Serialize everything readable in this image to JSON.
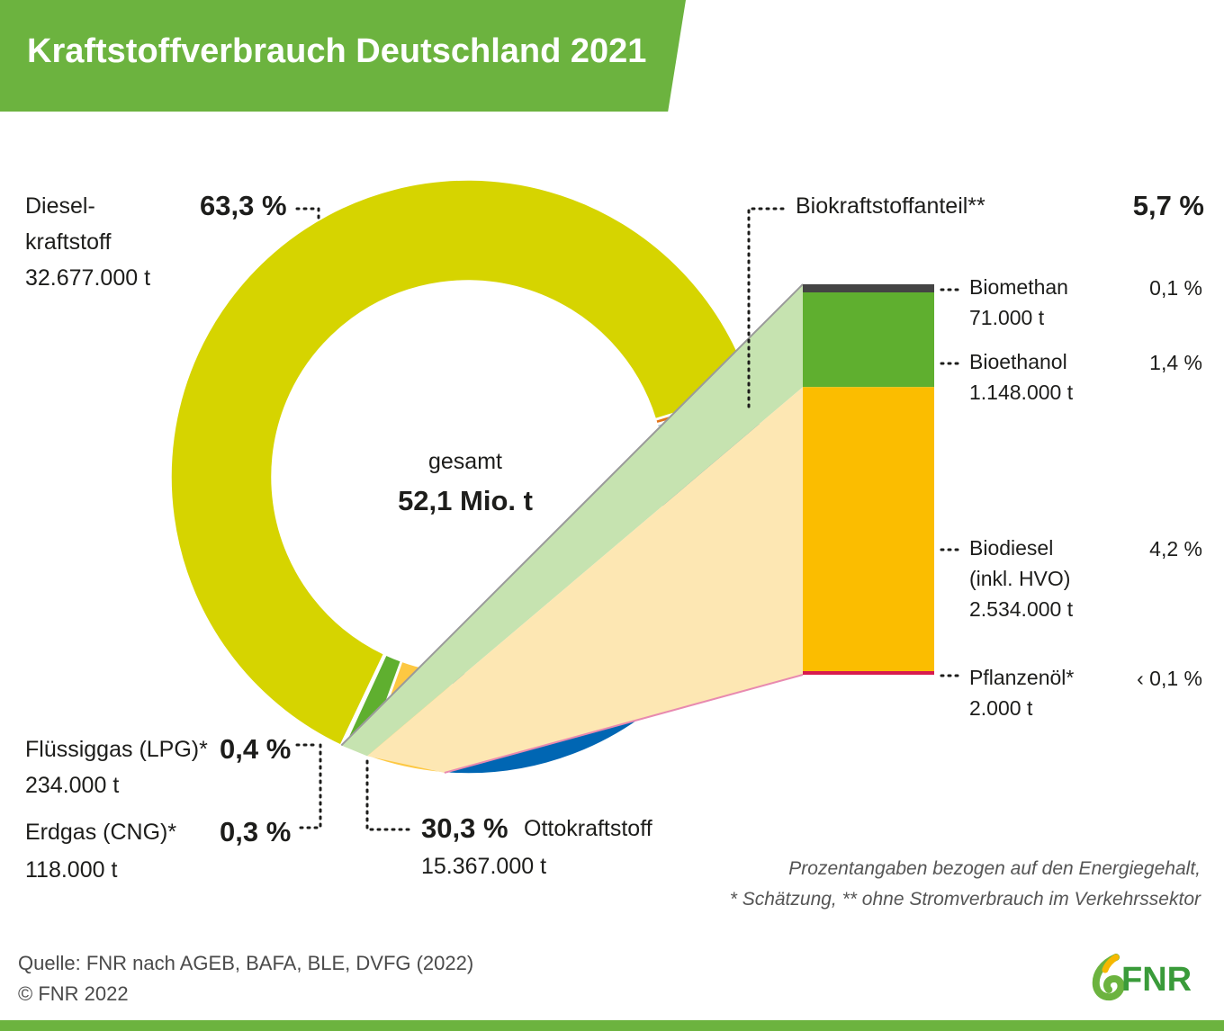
{
  "title": "Kraftstoffverbrauch Deutschland 2021",
  "center": {
    "label": "gesamt",
    "value": "52,1 Mio. t"
  },
  "labels": {
    "diesel": {
      "name_line1": "Diesel-",
      "name_line2": "kraftstoff",
      "amount": "32.677.000 t",
      "pct": "63,3 %"
    },
    "lpg": {
      "name": "Flüssiggas (LPG)*",
      "amount": "234.000 t",
      "pct": "0,4 %"
    },
    "cng": {
      "name": "Erdgas (CNG)*",
      "amount": "118.000 t",
      "pct": "0,3 %"
    },
    "otto": {
      "name": "Ottokraftstoff",
      "amount": "15.367.000 t",
      "pct": "30,3 %"
    },
    "bio_total": {
      "name": "Biokraftstoffanteil**",
      "pct": "5,7 %"
    },
    "biomethan": {
      "name": "Biomethan",
      "amount": "71.000 t",
      "pct": "0,1 %"
    },
    "bioethanol": {
      "name": "Bioethanol",
      "amount": "1.148.000 t",
      "pct": "1,4 %"
    },
    "biodiesel": {
      "name_line1": "Biodiesel",
      "name_line2": "(inkl. HVO)",
      "amount": "2.534.000 t",
      "pct": "4,2 %"
    },
    "pflanzenoel": {
      "name": "Pflanzenöl*",
      "amount": "2.000 t",
      "pct": "‹ 0,1 %"
    }
  },
  "notes": {
    "line1": "Prozentangaben bezogen auf den Energiegehalt,",
    "line2": "* Schätzung, ** ohne Stromverbrauch im Verkehrssektor"
  },
  "source": {
    "line1": "Quelle: FNR nach AGEB, BAFA, BLE, DVFG (2022)",
    "line2": "© FNR 2022"
  },
  "logo_text": "FNR",
  "colors": {
    "banner": "#6cb33f",
    "diesel": "#d6d400",
    "otto": "#0066b3",
    "lpg": "#e2741a",
    "cng": "#a9c9d6",
    "biomethan": "#444444",
    "bioethanol": "#5faf2f",
    "biodiesel": "#fbbd00",
    "biodiesel_donut": "#fdc842",
    "pflanzenoel": "#d81b4e"
  },
  "chart_data": {
    "type": "pie",
    "variant": "donut with bar-of-pie breakdown",
    "units": "% of energy content",
    "total": "52,1 Mio. t",
    "slices": [
      {
        "name": "Dieselkraftstoff",
        "value": 63.3,
        "tonnes": 32677000,
        "color": "#d6d400"
      },
      {
        "name": "Biomethan",
        "value": 0.1,
        "tonnes": 71000,
        "color": "#444444"
      },
      {
        "name": "Bioethanol",
        "value": 1.4,
        "tonnes": 1148000,
        "color": "#5faf2f"
      },
      {
        "name": "Biodiesel (inkl. HVO)",
        "value": 4.2,
        "tonnes": 2534000,
        "color": "#fdc842"
      },
      {
        "name": "Pflanzenöl",
        "value": 0.05,
        "tonnes": 2000,
        "color": "#d81b4e"
      },
      {
        "name": "Ottokraftstoff",
        "value": 30.3,
        "tonnes": 15367000,
        "color": "#0066b3"
      },
      {
        "name": "Erdgas (CNG)",
        "value": 0.3,
        "tonnes": 118000,
        "color": "#a9c9d6"
      },
      {
        "name": "Flüssiggas (LPG)",
        "value": 0.4,
        "tonnes": 234000,
        "color": "#e2741a"
      }
    ],
    "breakdown": {
      "name": "Biokraftstoffanteil",
      "total": 5.7,
      "items": [
        {
          "name": "Biomethan",
          "value": 0.1,
          "tonnes": 71000,
          "color": "#444444"
        },
        {
          "name": "Bioethanol",
          "value": 1.4,
          "tonnes": 1148000,
          "color": "#5faf2f"
        },
        {
          "name": "Biodiesel (inkl. HVO)",
          "value": 4.2,
          "tonnes": 2534000,
          "color": "#fbbd00"
        },
        {
          "name": "Pflanzenöl",
          "value": 0.05,
          "tonnes": 2000,
          "color": "#d81b4e"
        }
      ]
    }
  }
}
